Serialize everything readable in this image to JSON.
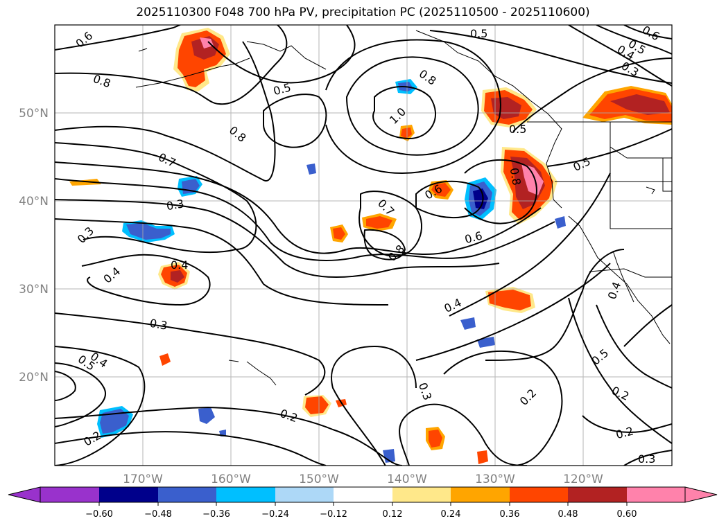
{
  "title": "2025110300 F048 700 hPa PV, precipitation PC (2025110500 - 2025110600)",
  "axes": {
    "lon_ticks": [
      "170°W",
      "160°W",
      "150°W",
      "140°W",
      "130°W",
      "120°W"
    ],
    "lat_ticks": [
      "50°N",
      "40°N",
      "30°N",
      "20°N"
    ]
  },
  "colorbar": {
    "ticks": [
      "−0.60",
      "−0.48",
      "−0.36",
      "−0.24",
      "−0.12",
      "0.12",
      "0.24",
      "0.36",
      "0.48",
      "0.60"
    ],
    "colors": [
      "#9932cc",
      "#00008b",
      "#3a5fcd",
      "#00bfff",
      "#add8f7",
      "#ffffff",
      "#ffe88a",
      "#ffa500",
      "#ff4500",
      "#b22222",
      "#ff82ab",
      "#ff82ab"
    ]
  },
  "contour_labels": [
    {
      "text": "0.6"
    },
    {
      "text": "0.8"
    },
    {
      "text": "0.7"
    },
    {
      "text": "0.3"
    },
    {
      "text": "0.3"
    },
    {
      "text": "0.4"
    },
    {
      "text": "0.4"
    },
    {
      "text": "0.3"
    },
    {
      "text": "0.4"
    },
    {
      "text": "0.5"
    },
    {
      "text": "0.2"
    },
    {
      "text": "0.8"
    },
    {
      "text": "0.5"
    },
    {
      "text": "0.8"
    },
    {
      "text": "1.0"
    },
    {
      "text": "0.7"
    },
    {
      "text": "0.8"
    },
    {
      "text": "0.6"
    },
    {
      "text": "0.6"
    },
    {
      "text": "0.4"
    },
    {
      "text": "0.2"
    },
    {
      "text": "0.3"
    },
    {
      "text": "0.2"
    },
    {
      "text": "0.5"
    },
    {
      "text": "0.5"
    },
    {
      "text": "0.8"
    },
    {
      "text": "0.5"
    },
    {
      "text": "0.5"
    },
    {
      "text": "0.4"
    },
    {
      "text": "0.3"
    },
    {
      "text": "0.6"
    },
    {
      "text": "0.4"
    },
    {
      "text": "0.5"
    },
    {
      "text": "0.2"
    },
    {
      "text": "0.2"
    },
    {
      "text": "0.3"
    }
  ]
}
